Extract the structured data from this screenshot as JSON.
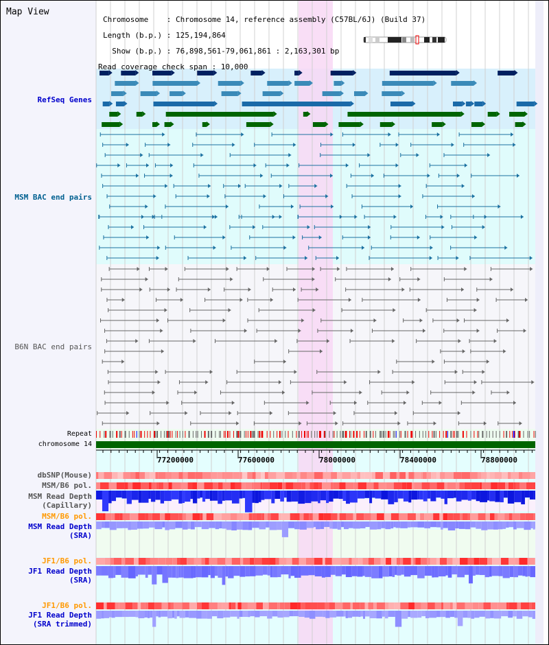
{
  "title": "Map View",
  "info": {
    "chromosome": "Chromosome    : Chromosome 14, reference assembly (C57BL/6J) (Build 37)",
    "length": "Length (b.p.) : 125,194,864",
    "show": "  Show (b.p.) : 76,898,561-79,061,861 : 2,163,301 bp",
    "span": "Read coverage check span : 10,000"
  },
  "tracks": {
    "refseq": "RefSeq Genes",
    "msm_bac": "MSM BAC end pairs",
    "b6n_bac": "B6N BAC end pairs",
    "repeat": "Repeat",
    "chromosome": "chromosome 14",
    "dbsnp": "dbSNP(Mouse)",
    "msm_pol": "MSM/B6 pol.",
    "msm_depth_cap": "MSM Read Depth\n(Capillary)",
    "msm_pol2": "MSM/B6 pol.",
    "msm_depth_sra": "MSM Read Depth\n(SRA)",
    "jf1_pol": "JF1/B6 pol.",
    "jf1_depth": "JF1 Read Depth\n(SRA)",
    "jf1_pol2": "JF1/B6 pol.",
    "jf1_depth_trim": "JF1 Read Depth\n(SRA trimmed)"
  },
  "axis": {
    "ticks": [
      "77200000",
      "77600000",
      "78000000",
      "78400000",
      "78800000"
    ]
  },
  "colors": {
    "refseq_bg": "#d8f0fc",
    "bac_bg": "#e0fcfc",
    "highlight": "#f8d8f4",
    "chrom": "#006400",
    "label_blue": "#0000cc",
    "label_teal": "#006090",
    "label_gray": "#555555",
    "label_orange": "#ff9900"
  }
}
